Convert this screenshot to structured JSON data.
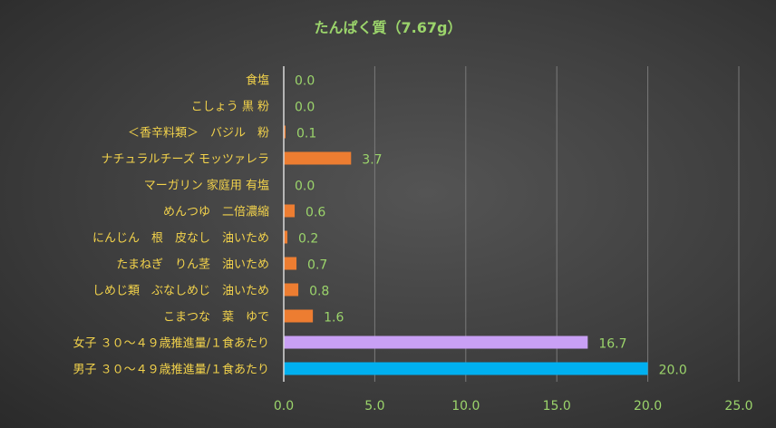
{
  "chart_data": {
    "type": "bar",
    "orientation": "horizontal",
    "title": "たんぱく質（7.67g）",
    "xlabel": "",
    "ylabel": "",
    "xlim": [
      0,
      25
    ],
    "x_ticks": [
      "0.0",
      "5.0",
      "10.0",
      "15.0",
      "20.0",
      "25.0"
    ],
    "grid": true,
    "categories": [
      "食塩",
      "こしょう 黒 粉",
      "＜香辛料類＞　バジル　粉",
      "ナチュラルチーズ モッツァレラ",
      "マーガリン 家庭用 有塩",
      "めんつゆ　二倍濃縮",
      "にんじん　根　皮なし　油いため",
      "たまねぎ　りん茎　油いため",
      "しめじ類　ぶなしめじ　油いため",
      "こまつな　葉　ゆで",
      "女子 ３０～４９歳推進量/１食あたり",
      "男子 ３０～４９歳推進量/１食あたり"
    ],
    "values": [
      0.0,
      0.0,
      0.1,
      3.7,
      0.0,
      0.6,
      0.2,
      0.7,
      0.8,
      1.6,
      16.7,
      20.0
    ],
    "value_labels": [
      "0.0",
      "0.0",
      "0.1",
      "3.7",
      "0.0",
      "0.6",
      "0.2",
      "0.7",
      "0.8",
      "1.6",
      "16.7",
      "20.0"
    ],
    "bar_colors": [
      "#ed7d31",
      "#ed7d31",
      "#ed7d31",
      "#ed7d31",
      "#ed7d31",
      "#ed7d31",
      "#ed7d31",
      "#ed7d31",
      "#ed7d31",
      "#ed7d31",
      "#c9a0f5",
      "#00b0f0"
    ]
  }
}
